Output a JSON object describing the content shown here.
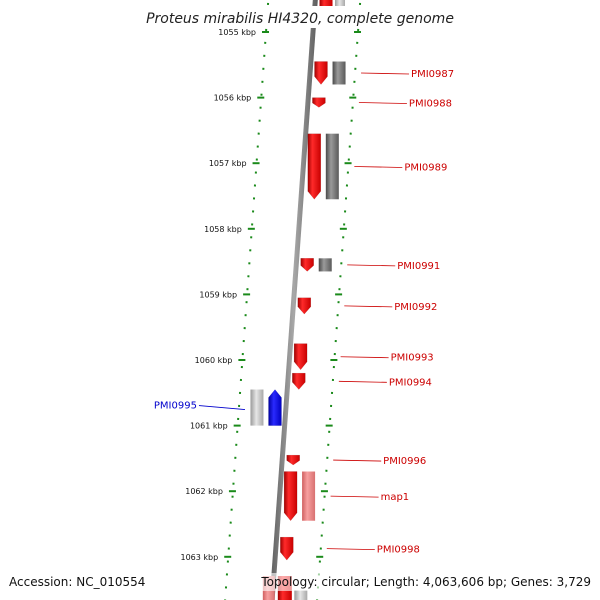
{
  "title": "Proteus mirabilis HI4320, complete genome",
  "accession": "Accession: NC_010554",
  "topology": "Topology: circular; Length: 4,063,606 bp; Genes: 3,729",
  "colors": {
    "forward_gene": "#ff0000",
    "forward_rna": "#f08080",
    "forward_other": "#7a7a7a",
    "reverse_gene": "#0000ff",
    "reverse_other": "#bdbdbd",
    "label_forward": "#cc0000",
    "label_reverse": "#0000cc",
    "tick_dot": "#1a8a1a",
    "backbone": "#7a7a7a"
  },
  "scale": {
    "unit": "kbp",
    "ticks": [
      {
        "kbp": 1055,
        "label": "1055 kbp"
      },
      {
        "kbp": 1056,
        "label": "1056 kbp"
      },
      {
        "kbp": 1057,
        "label": "1057 kbp"
      },
      {
        "kbp": 1058,
        "label": "1058 kbp"
      },
      {
        "kbp": 1059,
        "label": "1059 kbp"
      },
      {
        "kbp": 1060,
        "label": "1060 kbp"
      },
      {
        "kbp": 1061,
        "label": "1061 kbp"
      },
      {
        "kbp": 1062,
        "label": "1062 kbp"
      },
      {
        "kbp": 1063,
        "label": "1063 kbp"
      }
    ]
  },
  "genes": [
    {
      "id": "PMI0987",
      "label": "PMI0987",
      "strand": "forward",
      "start_kbp": 1055.45,
      "end_kbp": 1055.8,
      "feature": "CDS"
    },
    {
      "id": "PMI0988",
      "label": "PMI0988",
      "strand": "forward",
      "start_kbp": 1056.0,
      "end_kbp": 1056.15,
      "feature": "CDS"
    },
    {
      "id": "PMI0989",
      "label": "PMI0989",
      "strand": "forward",
      "start_kbp": 1056.55,
      "end_kbp": 1057.55,
      "feature": "CDS"
    },
    {
      "id": "PMI0991",
      "label": "PMI0991",
      "strand": "forward",
      "start_kbp": 1058.45,
      "end_kbp": 1058.65,
      "feature": "CDS"
    },
    {
      "id": "PMI0992",
      "label": "PMI0992",
      "strand": "forward",
      "start_kbp": 1059.05,
      "end_kbp": 1059.3,
      "feature": "CDS"
    },
    {
      "id": "PMI0993",
      "label": "PMI0993",
      "strand": "forward",
      "start_kbp": 1059.75,
      "end_kbp": 1060.15,
      "feature": "CDS"
    },
    {
      "id": "PMI0994",
      "label": "PMI0994",
      "strand": "forward",
      "start_kbp": 1060.2,
      "end_kbp": 1060.45,
      "feature": "CDS"
    },
    {
      "id": "PMI0995",
      "label": "PMI0995",
      "strand": "reverse",
      "start_kbp": 1060.45,
      "end_kbp": 1061.0,
      "feature": "CDS"
    },
    {
      "id": "PMI0996",
      "label": "PMI0996",
      "strand": "forward",
      "start_kbp": 1061.45,
      "end_kbp": 1061.6,
      "feature": "CDS"
    },
    {
      "id": "map1",
      "label": "map1",
      "strand": "forward",
      "start_kbp": 1061.7,
      "end_kbp": 1062.45,
      "feature": "CDS"
    },
    {
      "id": "PMI0998",
      "label": "PMI0998",
      "strand": "forward",
      "start_kbp": 1062.7,
      "end_kbp": 1063.05,
      "feature": "CDS"
    }
  ]
}
